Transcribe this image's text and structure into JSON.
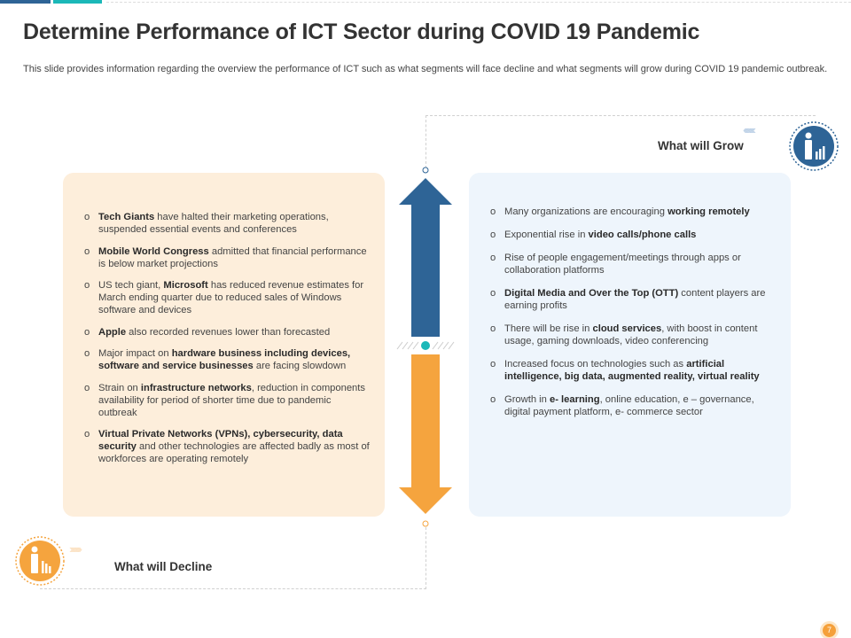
{
  "title": "Determine Performance of ICT Sector during COVID 19 Pandemic",
  "subtitle": "This slide provides information regarding the overview the performance of ICT such as what segments will face decline and what segments will grow during COVID 19 pandemic outbreak.",
  "colors": {
    "grow": "#2e6496",
    "decline": "#f5a43e",
    "teal": "#1bb8b8",
    "decline_bg": "#fdeedb",
    "grow_bg": "#eef5fc"
  },
  "bullet_glyph": "o",
  "grow": {
    "heading": "What will Grow",
    "icon": "person-growth-chart-icon",
    "items": [
      [
        [
          "Many organizations are encouraging ",
          false
        ],
        [
          "working remotely",
          true
        ]
      ],
      [
        [
          "Exponential rise in ",
          false
        ],
        [
          "video calls/phone calls",
          true
        ]
      ],
      [
        [
          "Rise of people engagement/meetings through apps or collaboration platforms",
          false
        ]
      ],
      [
        [
          "Digital Media and Over the Top (OTT)",
          true
        ],
        [
          " content players are earning profits",
          false
        ]
      ],
      [
        [
          "There will be rise in ",
          false
        ],
        [
          "cloud services",
          true
        ],
        [
          ", with boost in content usage, gaming downloads, video conferencing",
          false
        ]
      ],
      [
        [
          "Increased focus on technologies such as ",
          false
        ],
        [
          "artificial intelligence, big data, augmented reality, virtual reality",
          true
        ]
      ],
      [
        [
          "Growth in ",
          false
        ],
        [
          "e- learning",
          true
        ],
        [
          ", online education, e – governance, digital payment platform, e- commerce sector",
          false
        ]
      ]
    ]
  },
  "decline": {
    "heading": "What will Decline",
    "icon": "person-decline-chart-icon",
    "items": [
      [
        [
          "Tech Giants",
          true
        ],
        [
          " have halted their marketing operations, suspended essential events and conferences",
          false
        ]
      ],
      [
        [
          "Mobile World Congress",
          true
        ],
        [
          " admitted that financial performance is below market projections",
          false
        ]
      ],
      [
        [
          "US tech giant, ",
          false
        ],
        [
          "Microsoft",
          true
        ],
        [
          " has reduced revenue estimates for March ending quarter due to reduced sales of Windows software and devices",
          false
        ]
      ],
      [
        [
          "Apple",
          true
        ],
        [
          " also recorded revenues lower than forecasted",
          false
        ]
      ],
      [
        [
          "Major impact on ",
          false
        ],
        [
          "hardware business including devices, software and service businesses",
          true
        ],
        [
          " are facing slowdown",
          false
        ]
      ],
      [
        [
          "Strain on ",
          false
        ],
        [
          "infrastructure networks",
          true
        ],
        [
          ", reduction in components availability for period of shorter time due to pandemic outbreak",
          false
        ]
      ],
      [
        [
          "Virtual Private Networks (VPNs), cybersecurity, data security",
          true
        ],
        [
          " and other technologies are affected badly as most of workforces are operating remotely",
          false
        ]
      ]
    ]
  },
  "page_number": "7"
}
